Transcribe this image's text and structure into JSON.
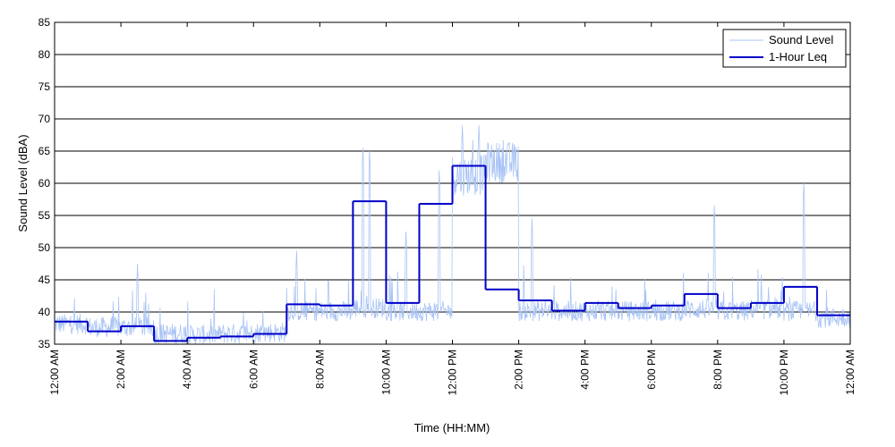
{
  "chart_data": {
    "type": "line",
    "xlabel": "Time (HH:MM)",
    "ylabel": "Sound Level (dBA)",
    "ylim": [
      35,
      85
    ],
    "xlim": [
      0,
      24
    ],
    "y_ticks": [
      "35",
      "40",
      "45",
      "50",
      "55",
      "60",
      "65",
      "70",
      "75",
      "80",
      "85"
    ],
    "x_ticks": [
      {
        "hour": 0,
        "label": "12:00 AM"
      },
      {
        "hour": 2,
        "label": "2:00 AM"
      },
      {
        "hour": 4,
        "label": "4:00 AM"
      },
      {
        "hour": 6,
        "label": "6:00 AM"
      },
      {
        "hour": 8,
        "label": "8:00 AM"
      },
      {
        "hour": 10,
        "label": "10:00 AM"
      },
      {
        "hour": 12,
        "label": "12:00 PM"
      },
      {
        "hour": 14,
        "label": "2:00 PM"
      },
      {
        "hour": 16,
        "label": "4:00 PM"
      },
      {
        "hour": 18,
        "label": "6:00 PM"
      },
      {
        "hour": 20,
        "label": "8:00 PM"
      },
      {
        "hour": 22,
        "label": "10:00 PM"
      },
      {
        "hour": 24,
        "label": "12:00 AM"
      }
    ],
    "grid": "horizontal",
    "legend_position": "top-right",
    "series": [
      {
        "name": "Sound Level",
        "color": "#a9c4f5",
        "style": "thin-line",
        "base_by_hour": [
          37.5,
          37,
          37,
          36,
          35.8,
          36,
          36.2,
          39.5,
          39.5,
          40,
          39.5,
          39.5,
          60,
          62,
          39.5,
          39.5,
          39.5,
          39.5,
          39.5,
          39.8,
          39.5,
          39.8,
          39.5,
          38.5
        ],
        "peaks": [
          {
            "hour": 2.5,
            "value": 47.5
          },
          {
            "hour": 7.3,
            "value": 49.5
          },
          {
            "hour": 9.3,
            "value": 65.5
          },
          {
            "hour": 9.5,
            "value": 65
          },
          {
            "hour": 10.6,
            "value": 52.5
          },
          {
            "hour": 11.6,
            "value": 62
          },
          {
            "hour": 12.3,
            "value": 69
          },
          {
            "hour": 12.8,
            "value": 69
          },
          {
            "hour": 14.4,
            "value": 54.5
          },
          {
            "hour": 19.9,
            "value": 56.5
          },
          {
            "hour": 22.6,
            "value": 60
          }
        ]
      },
      {
        "name": "1-Hour Leq",
        "color": "#0000c8",
        "style": "step",
        "x": [
          0,
          1,
          2,
          3,
          4,
          5,
          6,
          7,
          8,
          9,
          10,
          11,
          12,
          13,
          14,
          15,
          16,
          17,
          18,
          19,
          20,
          21,
          22,
          23
        ],
        "values": [
          38.5,
          37,
          37.8,
          35.5,
          36,
          36.2,
          36.6,
          41.2,
          41,
          57.2,
          41.4,
          56.8,
          62.7,
          43.5,
          41.8,
          40.2,
          41.4,
          40.6,
          41,
          42.8,
          40.6,
          41.4,
          43.9,
          39.5
        ]
      }
    ]
  }
}
